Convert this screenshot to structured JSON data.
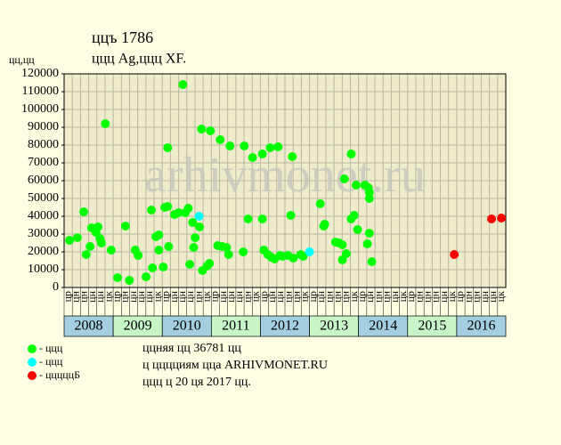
{
  "chart_data": {
    "type": "scatter",
    "title": "ццъ 1786",
    "subtitle": "ццц Ag,ццц XF.",
    "y_label": "цц,цц",
    "watermark": "arhivmonet.ru",
    "xlim": [
      2008,
      2017
    ],
    "xticks": [
      2008,
      2009,
      2010,
      2011,
      2012,
      2013,
      2014,
      2015,
      2016
    ],
    "period_labels": [
      "цр",
      "цн",
      "цн",
      "цн",
      "цн",
      "цк",
      "цр",
      "цн",
      "цн",
      "цн",
      "цн",
      "цк",
      "цр",
      "цн",
      "цн",
      "цн",
      "цн",
      "цк",
      "цр",
      "цн",
      "цн",
      "цн",
      "цн",
      "цк",
      "цр",
      "цн",
      "цн",
      "цн",
      "цн",
      "цк",
      "цр",
      "цн",
      "цн",
      "цн",
      "цн",
      "цк",
      "цр",
      "цн",
      "цн",
      "цн",
      "цн",
      "цк",
      "цр",
      "цн",
      "цн",
      "цн",
      "цн",
      "цк",
      "цр",
      "цн",
      "цн",
      "цн",
      "цн",
      "цк"
    ],
    "ylim": [
      0,
      120000
    ],
    "yticks": [
      0,
      10000,
      20000,
      30000,
      40000,
      50000,
      60000,
      70000,
      80000,
      90000,
      100000,
      110000,
      120000
    ],
    "grid": true,
    "series": [
      {
        "name": "- ццц",
        "color": "#00ff00",
        "x": [
          2008.11,
          2008.27,
          2008.4,
          2008.45,
          2008.53,
          2008.56,
          2008.65,
          2008.69,
          2008.73,
          2008.76,
          2008.84,
          2008.96,
          2009.09,
          2009.25,
          2009.33,
          2009.45,
          2009.51,
          2009.67,
          2009.78,
          2009.8,
          2009.87,
          2009.93,
          2009.93,
          2010.02,
          2010.05,
          2010.11,
          2010.11,
          2010.13,
          2010.25,
          2010.33,
          2010.42,
          2010.47,
          2010.53,
          2010.56,
          2010.62,
          2010.64,
          2010.67,
          2010.76,
          2010.8,
          2010.82,
          2010.91,
          2010.96,
          2010.98,
          2011.13,
          2011.18,
          2011.22,
          2011.31,
          2011.35,
          2011.38,
          2011.65,
          2011.67,
          2011.75,
          2011.84,
          2012.04,
          2012.04,
          2012.07,
          2012.15,
          2012.2,
          2012.22,
          2012.29,
          2012.36,
          2012.4,
          2012.45,
          2012.56,
          2012.62,
          2012.65,
          2012.67,
          2012.82,
          2012.87,
          2013.22,
          2013.29,
          2013.31,
          2013.53,
          2013.6,
          2013.67,
          2013.67,
          2013.71,
          2013.75,
          2013.85,
          2013.85,
          2013.91,
          2013.95,
          2013.98,
          2014.13,
          2014.18,
          2014.2,
          2014.22,
          2014.22,
          2014.22,
          2014.27
        ],
        "values": [
          26500,
          28000,
          42500,
          18500,
          23000,
          33500,
          31000,
          34000,
          27500,
          25000,
          92000,
          21000,
          5500,
          34500,
          4000,
          21000,
          18000,
          6000,
          43500,
          11000,
          28500,
          29500,
          21000,
          11500,
          45000,
          45500,
          78500,
          23000,
          41000,
          42000,
          114000,
          42000,
          44500,
          13000,
          36500,
          22500,
          28000,
          34000,
          89000,
          9500,
          12000,
          13500,
          88000,
          23500,
          83000,
          23000,
          22500,
          18500,
          79500,
          20000,
          79500,
          38500,
          73000,
          75000,
          38500,
          21000,
          18500,
          78500,
          17000,
          16000,
          79000,
          18000,
          17500,
          18000,
          40500,
          73500,
          16500,
          18500,
          17500,
          47000,
          34500,
          35500,
          25500,
          25000,
          24000,
          15500,
          61000,
          19000,
          75000,
          38500,
          40500,
          57500,
          32500,
          57500,
          24500,
          56000,
          30500,
          53500,
          50000,
          14500
        ]
      },
      {
        "name": "- ццц",
        "color": "#00ffff",
        "x": [
          2010.75,
          2013.0
        ],
        "values": [
          40000,
          20000
        ]
      },
      {
        "name": "- цццццБ",
        "color": "#ff0000",
        "x": [
          2015.95,
          2016.71,
          2016.91
        ],
        "values": [
          18500,
          38500,
          39000
        ]
      }
    ],
    "notes": [
      "ццняя цц 36781 цц",
      "ц цццциям цца ARHIVMONET.RU",
      "ццц ц 20 ця 2017 цц."
    ]
  }
}
